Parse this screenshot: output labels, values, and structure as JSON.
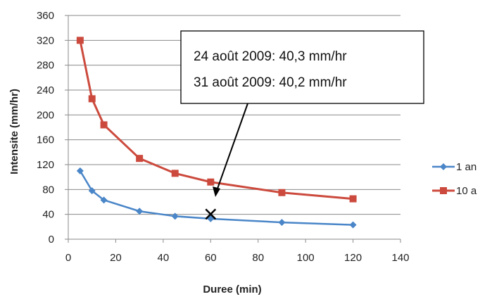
{
  "chart_data": {
    "type": "line",
    "title": "",
    "xlabel": "Duree (min)",
    "ylabel": "Intensite (mm/hr)",
    "xlim": [
      0,
      140
    ],
    "ylim": [
      0,
      360
    ],
    "x_ticks": [
      0,
      20,
      40,
      60,
      80,
      100,
      120,
      140
    ],
    "y_ticks": [
      0,
      40,
      80,
      120,
      160,
      200,
      240,
      280,
      320,
      360
    ],
    "grid": "horizontal",
    "legend_position": "right",
    "x": [
      5,
      10,
      15,
      30,
      45,
      60,
      90,
      120
    ],
    "series": [
      {
        "name": "1 an",
        "color": "#4a86c8",
        "marker": "diamond",
        "values": [
          110,
          78,
          63,
          45,
          37,
          33,
          27,
          23
        ]
      },
      {
        "name": "10 a",
        "color": "#cc4a3d",
        "marker": "square",
        "values": [
          320,
          226,
          184,
          130,
          106,
          92,
          75,
          65
        ]
      }
    ],
    "annotations": {
      "lines": [
        "24 août 2009: 40,3 mm/hr",
        "31 août 2009: 40,2 mm/hr"
      ],
      "marker": {
        "symbol": "x",
        "x": 60,
        "y": 40.3
      }
    }
  }
}
